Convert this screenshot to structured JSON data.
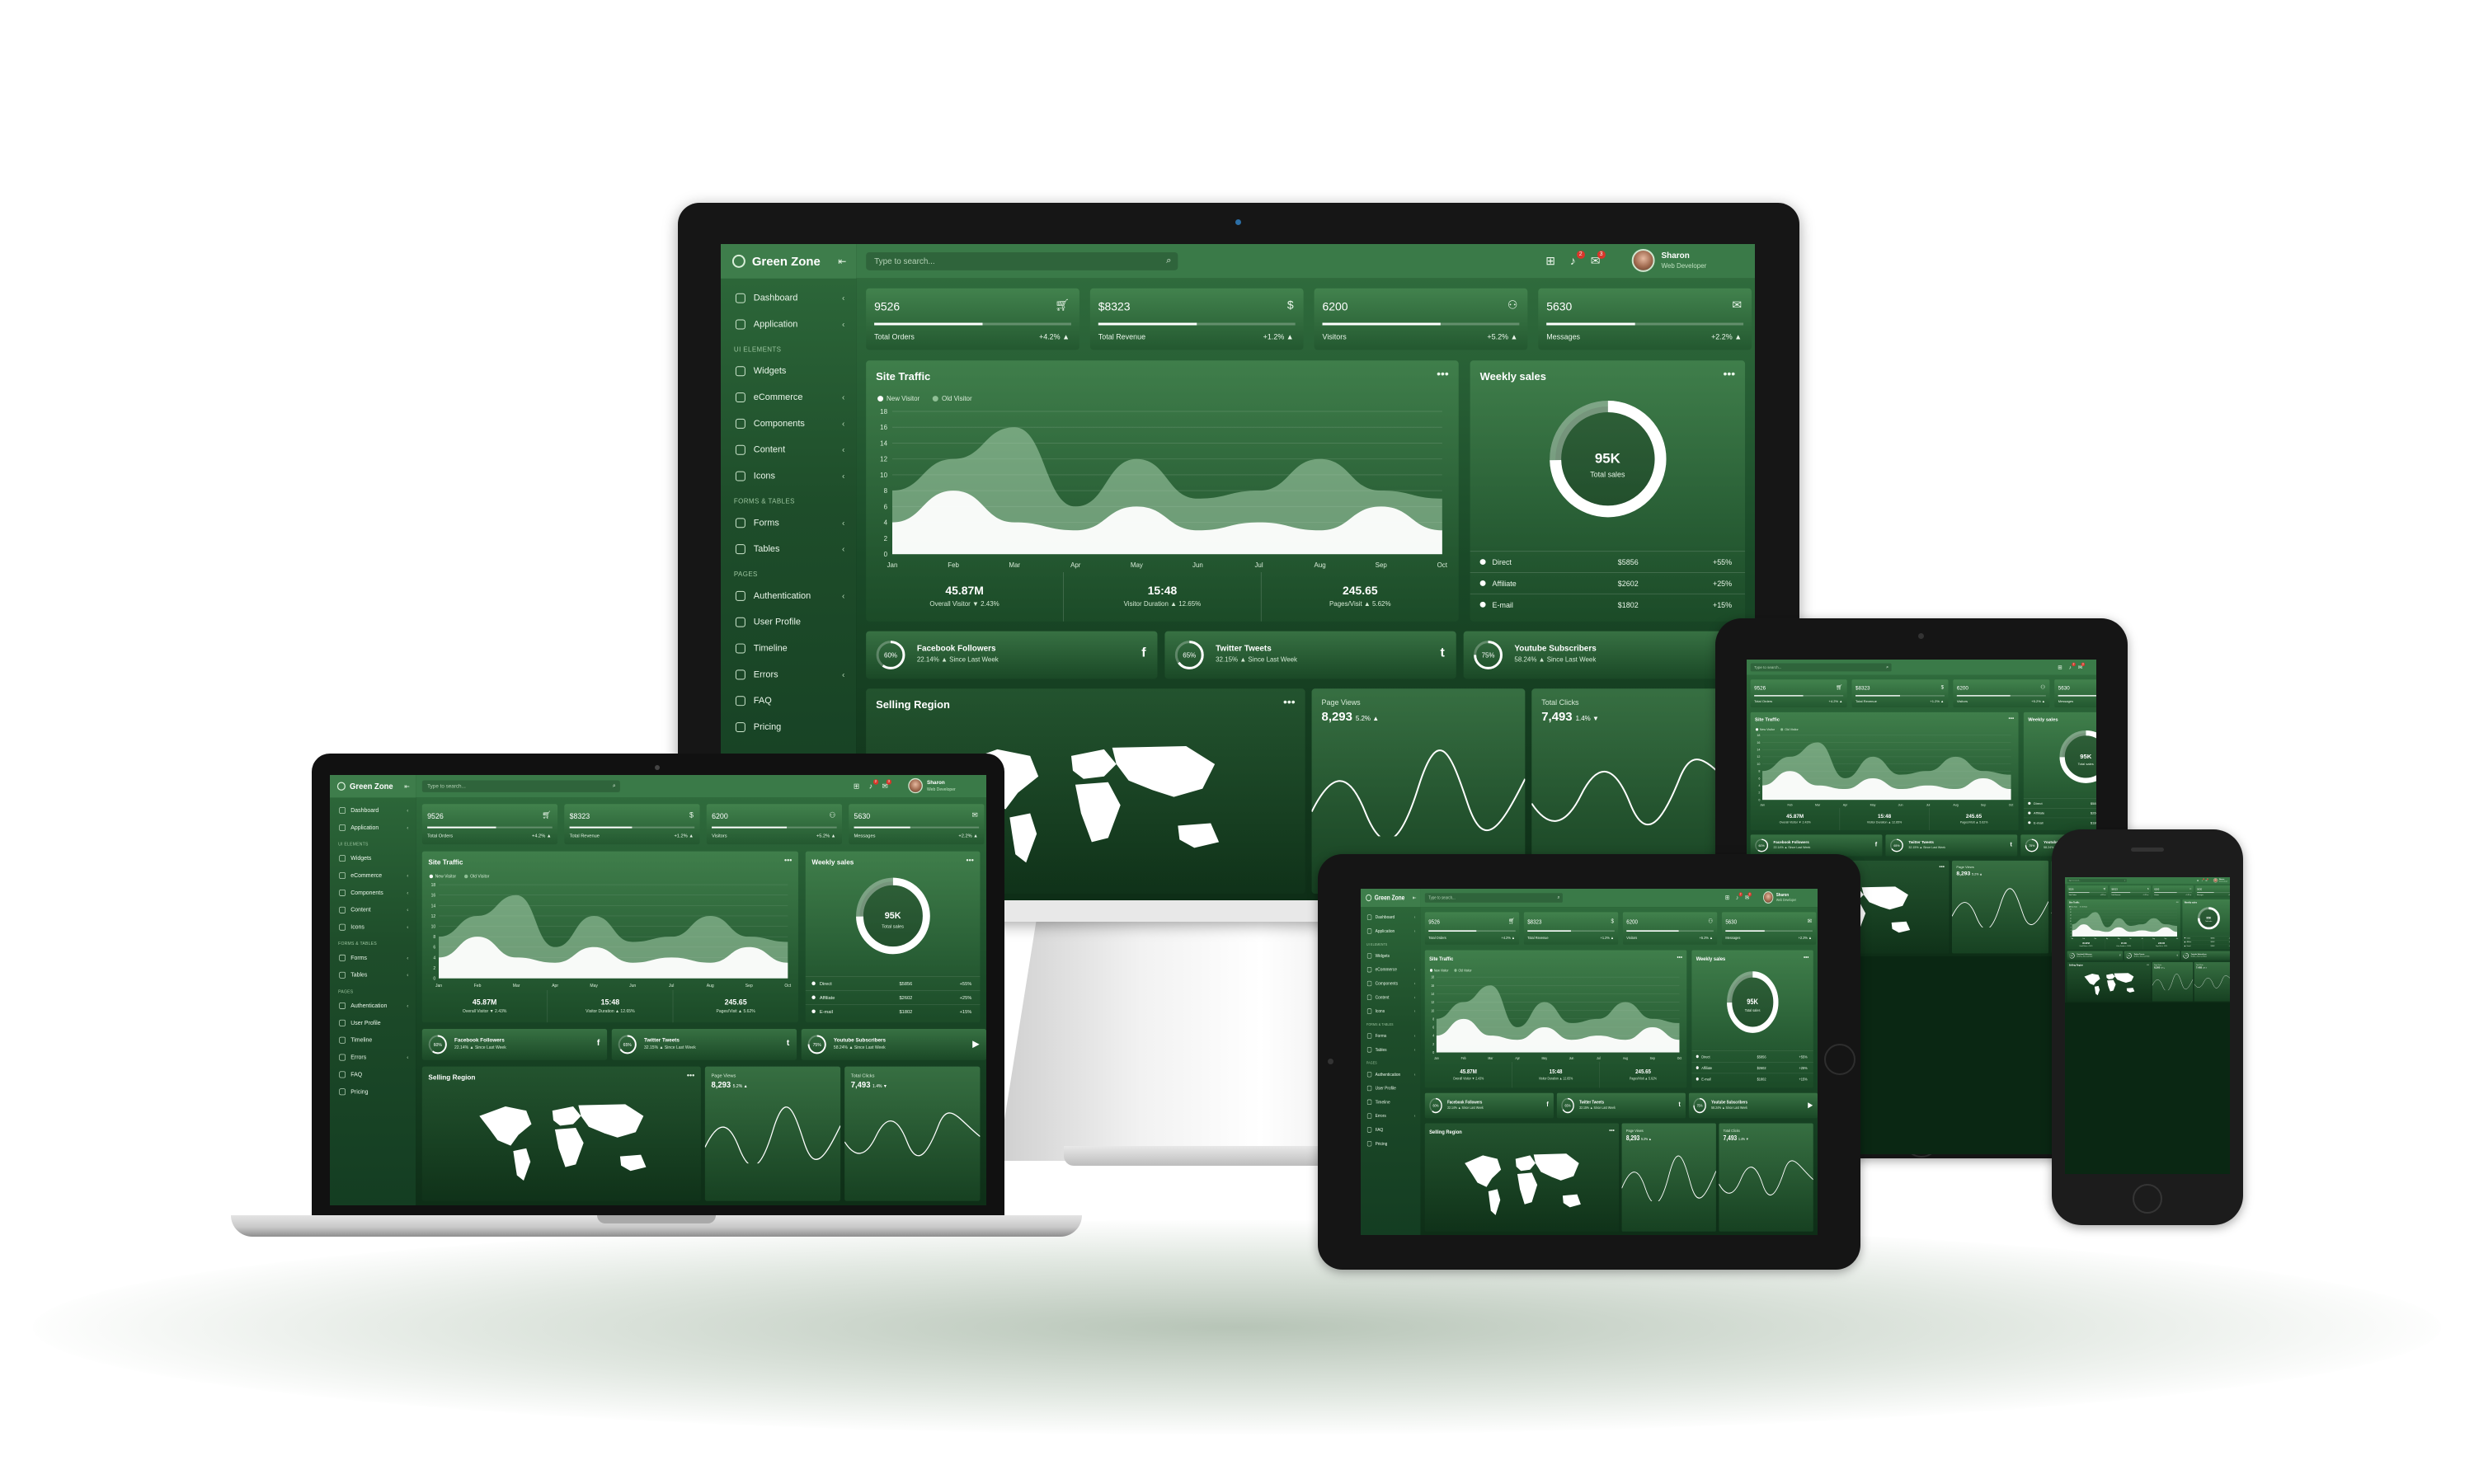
{
  "brand": {
    "name": "Green Zone"
  },
  "search": {
    "placeholder": "Type to search..."
  },
  "user": {
    "name": "Sharon",
    "role": "Web Developer"
  },
  "notifications": {
    "count_a": "2",
    "count_b": "3"
  },
  "nav": {
    "dashboard": "Dashboard",
    "application": "Application",
    "section_ui": "UI ELEMENTS",
    "widgets": "Widgets",
    "ecommerce": "eCommerce",
    "components": "Components",
    "content": "Content",
    "icons": "Icons",
    "section_forms": "FORMS & TABLES",
    "forms": "Forms",
    "tables": "Tables",
    "section_pages": "PAGES",
    "authentication": "Authentication",
    "user_profile": "User Profile",
    "timeline": "Timeline",
    "errors": "Errors",
    "faq": "FAQ",
    "pricing": "Pricing"
  },
  "stats": [
    {
      "value": "9526",
      "label": "Total Orders",
      "change": "+4.2% ▲",
      "icon": "cart-icon",
      "progress": 0.55
    },
    {
      "value": "$8323",
      "label": "Total Revenue",
      "change": "+1.2% ▲",
      "icon": "dollar-icon",
      "progress": 0.5
    },
    {
      "value": "6200",
      "label": "Visitors",
      "change": "+5.2% ▲",
      "icon": "users-icon",
      "progress": 0.6
    },
    {
      "value": "5630",
      "label": "Messages",
      "change": "+2.2% ▲",
      "icon": "envelope-icon",
      "progress": 0.45
    }
  ],
  "site_traffic": {
    "title": "Site Traffic",
    "legend": [
      "New Visitor",
      "Old Visitor"
    ],
    "summary": [
      {
        "value": "45.87M",
        "label": "Overall Visitor ▼ 2.43%"
      },
      {
        "value": "15:48",
        "label": "Visitor Duration ▲ 12.65%"
      },
      {
        "value": "245.65",
        "label": "Pages/Visit ▲ 5.62%"
      }
    ]
  },
  "weekly_sales": {
    "title": "Weekly sales",
    "total": "95K",
    "total_label": "Total sales",
    "rows": [
      {
        "name": "Direct",
        "amount": "$5856",
        "change": "+55%"
      },
      {
        "name": "Affiliate",
        "amount": "$2602",
        "change": "+25%"
      },
      {
        "name": "E-mail",
        "amount": "$1802",
        "change": "+15%"
      }
    ]
  },
  "social": [
    {
      "name": "Facebook Followers",
      "percent": "60%",
      "sub": "22.14% ▲ Since Last Week",
      "icon": "f",
      "fraction": 0.6
    },
    {
      "name": "Twitter Tweets",
      "percent": "65%",
      "sub": "32.15% ▲ Since Last Week",
      "icon": "t",
      "fraction": 0.65
    },
    {
      "name": "Youtube Subscribers",
      "percent": "75%",
      "sub": "58.24% ▲ Since Last Week",
      "icon": "▶",
      "fraction": 0.75
    }
  ],
  "selling_region": {
    "title": "Selling Region"
  },
  "page_views": {
    "label": "Page Views",
    "value": "8,293",
    "change": "5.2% ▲"
  },
  "total_clicks": {
    "label": "Total Clicks",
    "value": "7,493",
    "change": "1.4% ▼"
  },
  "chart_data": {
    "type": "area",
    "categories": [
      "Jan",
      "Feb",
      "Mar",
      "Apr",
      "May",
      "Jun",
      "Jul",
      "Aug",
      "Sep",
      "Oct"
    ],
    "y_ticks": [
      0,
      2,
      4,
      6,
      8,
      10,
      12,
      14,
      16,
      18
    ],
    "ylim": [
      0,
      18
    ],
    "series": [
      {
        "name": "New Visitor",
        "values": [
          4,
          8,
          4,
          3,
          6,
          3,
          4,
          3,
          6,
          3
        ]
      },
      {
        "name": "Old Visitor",
        "values": [
          8,
          12,
          16,
          6,
          12,
          7,
          8,
          12,
          8,
          7
        ]
      }
    ]
  },
  "colors": {
    "accent": "#3a7a48",
    "sidebar": "#2e6a3b",
    "badge": "#d9362b"
  }
}
